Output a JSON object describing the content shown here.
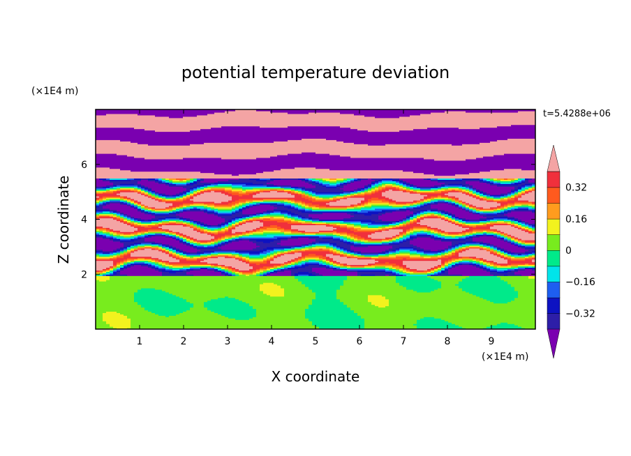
{
  "chart_data": {
    "type": "heatmap",
    "title": "potential temperature deviation",
    "xlabel": "X coordinate",
    "ylabel": "Z coordinate",
    "x_unit": "(×1E4 m)",
    "z_unit": "(×1E4 m)",
    "time_label": "t=5.4288e+06",
    "xlim": [
      0,
      10
    ],
    "zlim": [
      0,
      8
    ],
    "x_ticks": [
      "1",
      "2",
      "3",
      "4",
      "5",
      "6",
      "7",
      "8",
      "9"
    ],
    "z_ticks": [
      "2",
      "4",
      "6"
    ],
    "colorbar": {
      "levels": [
        -0.4,
        -0.32,
        -0.24,
        -0.16,
        -0.08,
        0,
        0.08,
        0.16,
        0.24,
        0.32,
        0.4
      ],
      "labels": [
        "0.32",
        "0.16",
        "0",
        "−0.16",
        "−0.32"
      ],
      "colors": [
        "#7a00b0",
        "#2d1ea8",
        "#0d12c2",
        "#1e5ef0",
        "#00e4ea",
        "#00ea8a",
        "#78ec1e",
        "#f2f21e",
        "#ff9c1e",
        "#ff5a1e",
        "#f0303c",
        "#f4a4a4"
      ],
      "extend": "both"
    },
    "regions": [
      {
        "z_range": [
          0,
          2
        ],
        "description": "smooth mix of 0 to 0.08"
      },
      {
        "z_range": [
          2,
          5.5
        ],
        "description": "turbulent layered bands, full range"
      },
      {
        "z_range": [
          5.5,
          8
        ],
        "description": "alternating bands of >0.4 and <-0.4"
      }
    ]
  }
}
